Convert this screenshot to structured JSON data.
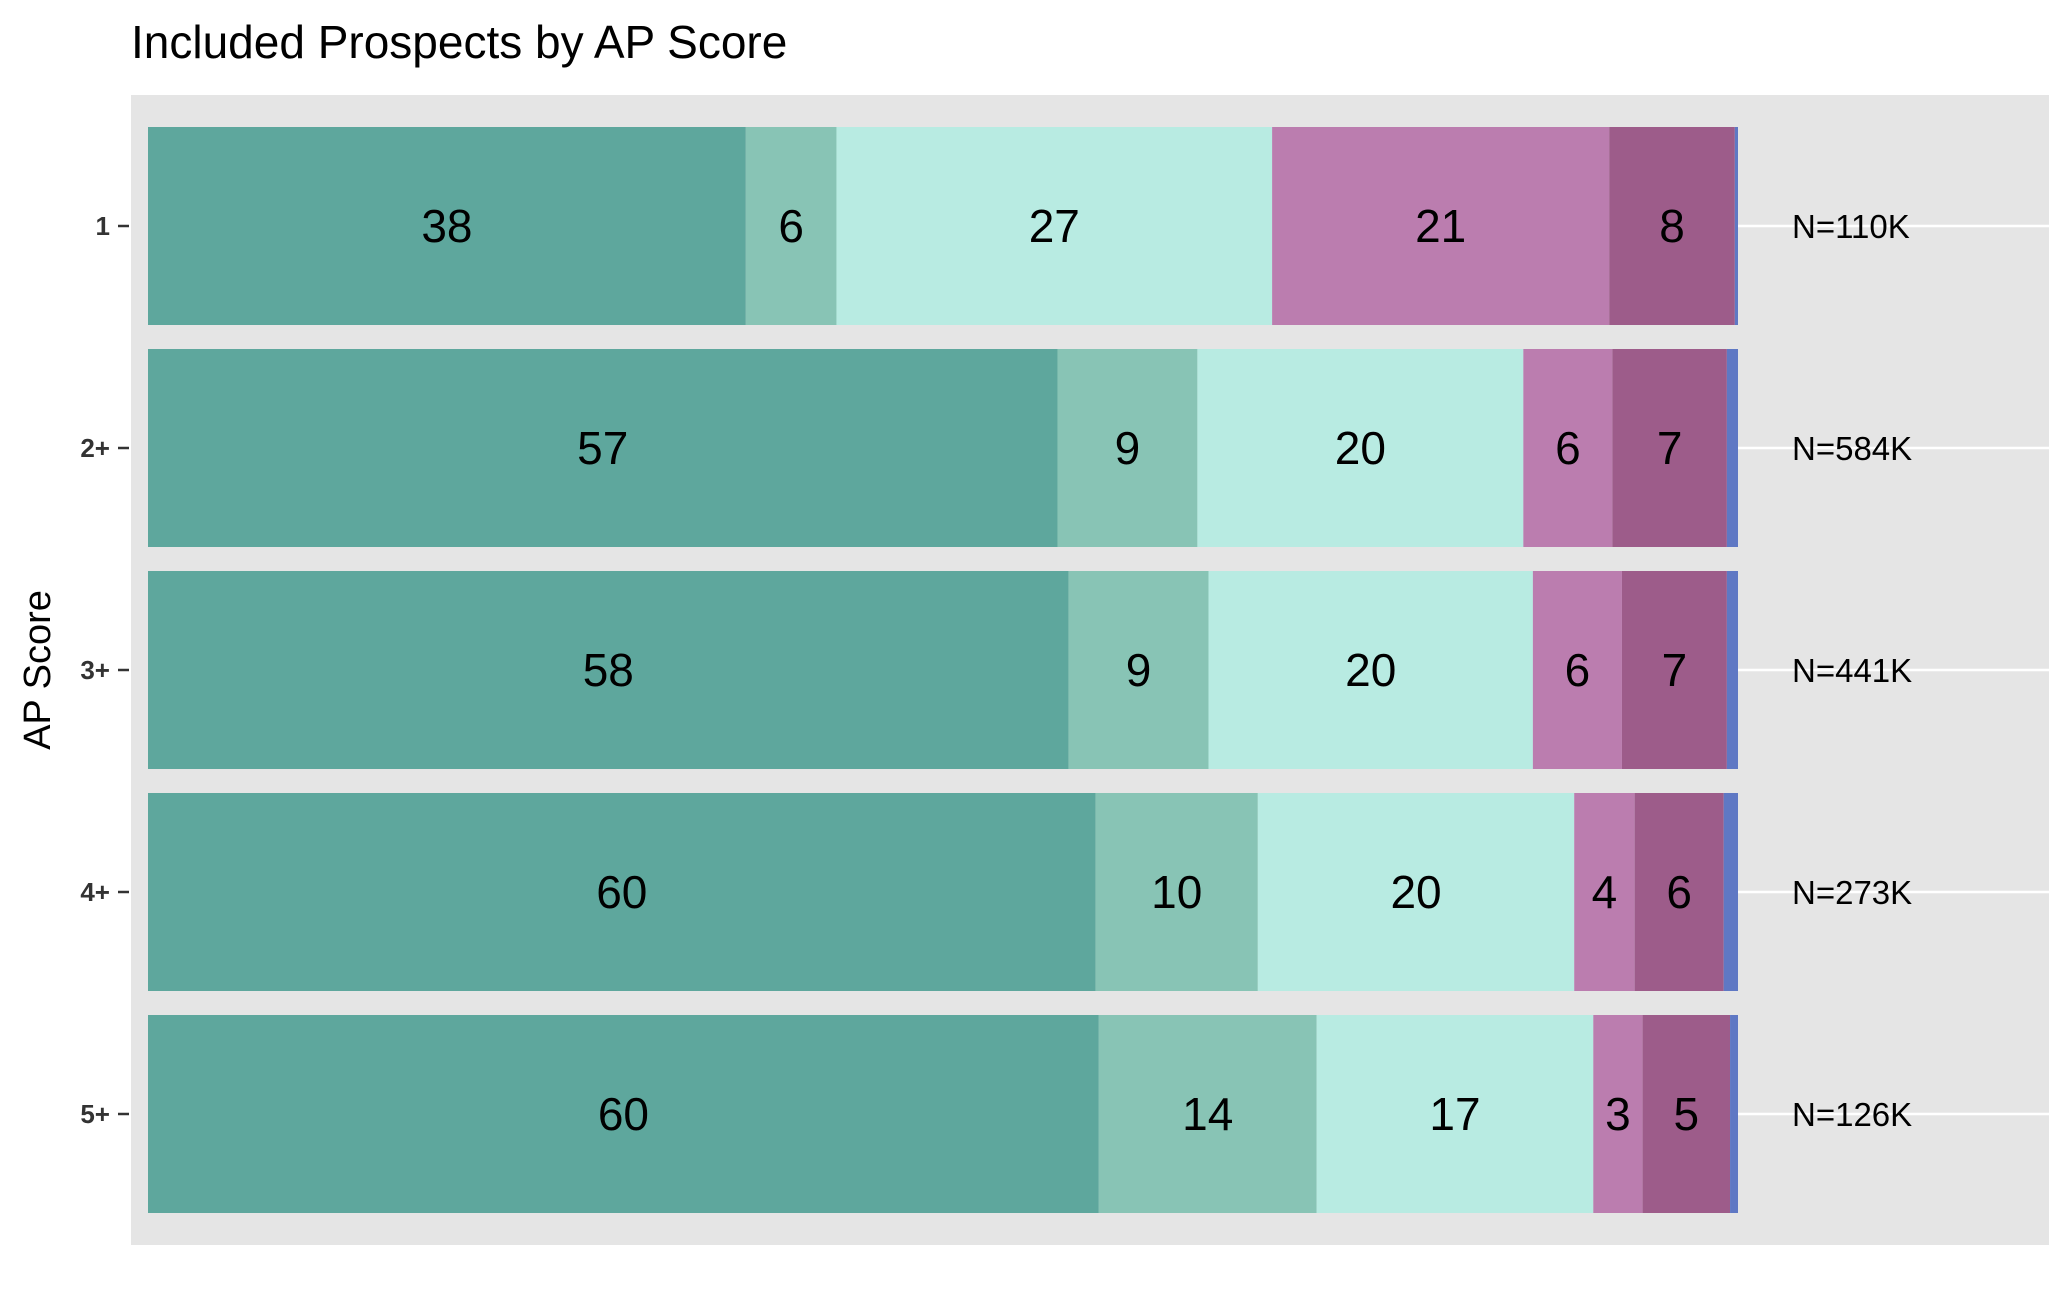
{
  "chart_data": {
    "type": "bar",
    "orientation": "horizontal",
    "stacked": true,
    "title": "Included Prospects by AP Score",
    "ylabel": "AP Score",
    "xlabel": "",
    "categories": [
      "1",
      "2+",
      "3+",
      "4+",
      "5+"
    ],
    "n_labels": [
      "N=110K",
      "N=584K",
      "N=441K",
      "N=273K",
      "N=126K"
    ],
    "series": [
      {
        "values": [
          37.6,
          57.2,
          57.9,
          59.6,
          59.8
        ],
        "labels": [
          "38",
          "57",
          "58",
          "60",
          "60"
        ],
        "color": "#5ea79d"
      },
      {
        "values": [
          5.7,
          8.8,
          8.8,
          10.2,
          13.7
        ],
        "labels": [
          "6",
          "9",
          "9",
          "10",
          "14"
        ],
        "color": "#88c4b5"
      },
      {
        "values": [
          27.4,
          20.5,
          20.4,
          19.9,
          17.4
        ],
        "labels": [
          "27",
          "20",
          "20",
          "20",
          "17"
        ],
        "color": "#b8ebe2"
      },
      {
        "values": [
          21.2,
          5.6,
          5.6,
          3.8,
          3.1
        ],
        "labels": [
          "21",
          "6",
          "6",
          "4",
          "3"
        ],
        "color": "#bb7daf"
      },
      {
        "values": [
          7.9,
          7.2,
          6.6,
          5.6,
          5.5
        ],
        "labels": [
          "8",
          "7",
          "7",
          "6",
          "5"
        ],
        "color": "#9d5c8a"
      },
      {
        "values": [
          0.2,
          0.7,
          0.7,
          0.9,
          0.5
        ],
        "labels": [
          "",
          "",
          "",
          "",
          ""
        ],
        "color": "#5f78c4"
      }
    ],
    "xlim": [
      0,
      100
    ],
    "grid": true,
    "panel_background": "#e5e5e5",
    "legend": "none"
  }
}
